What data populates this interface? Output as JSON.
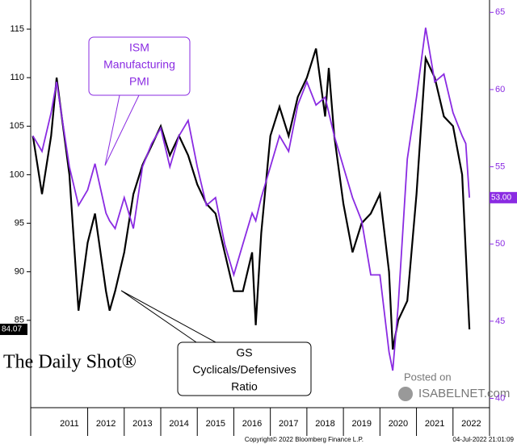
{
  "chart_data": {
    "type": "line",
    "x": [
      2010.5,
      2010.75,
      2011.0,
      2011.15,
      2011.5,
      2011.75,
      2012.0,
      2012.2,
      2012.5,
      2012.6,
      2012.75,
      2013.0,
      2013.25,
      2013.5,
      2013.75,
      2014.0,
      2014.25,
      2014.5,
      2014.75,
      2015.0,
      2015.25,
      2015.5,
      2015.75,
      2016.0,
      2016.25,
      2016.5,
      2016.6,
      2016.75,
      2017.0,
      2017.25,
      2017.5,
      2017.75,
      2018.0,
      2018.25,
      2018.5,
      2018.6,
      2018.75,
      2019.0,
      2019.25,
      2019.5,
      2019.75,
      2020.0,
      2020.25,
      2020.35,
      2020.5,
      2020.75,
      2021.0,
      2021.25,
      2021.5,
      2021.75,
      2022.0,
      2022.25,
      2022.35,
      2022.45
    ],
    "series": [
      {
        "name": "GS Cyclicals/Defensives Ratio",
        "color": "#000000",
        "axis": "y",
        "end_label": "84.07",
        "values": [
          104,
          98,
          104,
          110,
          100,
          86,
          93,
          96,
          88,
          86,
          88,
          92,
          98,
          101,
          103,
          105,
          102,
          104,
          102,
          99,
          97,
          96,
          92,
          88,
          88,
          92,
          84.5,
          94,
          104,
          107,
          104,
          108,
          110,
          113,
          106,
          111,
          104,
          97,
          92,
          95,
          96,
          98,
          90,
          82,
          85,
          87,
          98,
          112,
          110,
          106,
          105,
          100,
          92,
          84.07
        ]
      },
      {
        "name": "ISM Manufacturing PMI",
        "color": "#8a2be2",
        "axis": "y2",
        "end_label": "53.00",
        "values": [
          57,
          56,
          58.5,
          60.5,
          55,
          52.5,
          53.5,
          55.2,
          52,
          51.5,
          51,
          53,
          51,
          55,
          56.5,
          57.5,
          55,
          57,
          58,
          55,
          52.5,
          53,
          50,
          48,
          50,
          52,
          51.5,
          53,
          55,
          57,
          56,
          59,
          60.5,
          59,
          59.5,
          58.5,
          57,
          55,
          53,
          51.5,
          48,
          48,
          43,
          41.8,
          46,
          55.5,
          59.5,
          64,
          60.5,
          61,
          58.5,
          57,
          56.5,
          53
        ]
      }
    ],
    "xlim": [
      2010.44,
      2023.0
    ],
    "xticks": [
      {
        "value": 2011.5,
        "label": "2011"
      },
      {
        "value": 2012.5,
        "label": "2012"
      },
      {
        "value": 2013.5,
        "label": "2013"
      },
      {
        "value": 2014.5,
        "label": "2014"
      },
      {
        "value": 2015.5,
        "label": "2015"
      },
      {
        "value": 2016.5,
        "label": "2016"
      },
      {
        "value": 2017.5,
        "label": "2017"
      },
      {
        "value": 2018.5,
        "label": "2018"
      },
      {
        "value": 2019.5,
        "label": "2019"
      },
      {
        "value": 2020.5,
        "label": "2020"
      },
      {
        "value": 2021.5,
        "label": "2021"
      },
      {
        "value": 2022.5,
        "label": "2022"
      }
    ],
    "ylim": [
      76,
      118
    ],
    "yticks": [
      85,
      90,
      95,
      100,
      105,
      110,
      115
    ],
    "y2lim": [
      39.4,
      65.8
    ],
    "y2ticks": [
      40,
      45,
      50,
      55,
      60,
      65
    ],
    "y2color": "#8a2be2",
    "annotations": [
      {
        "lines": [
          "ISM",
          "Manufacturing",
          "PMI"
        ],
        "color": "#8a2be2"
      },
      {
        "lines": [
          "GS",
          "Cyclicals/Defensives",
          "Ratio"
        ],
        "color": "#000000"
      }
    ],
    "logo": "The Daily Shot®",
    "watermark": [
      "Posted on",
      "ISABELNET.com"
    ],
    "copyright": "Copyright© 2022 Bloomberg Finance L.P.",
    "timestamp": "04-Jul-2022 21:01:09"
  }
}
